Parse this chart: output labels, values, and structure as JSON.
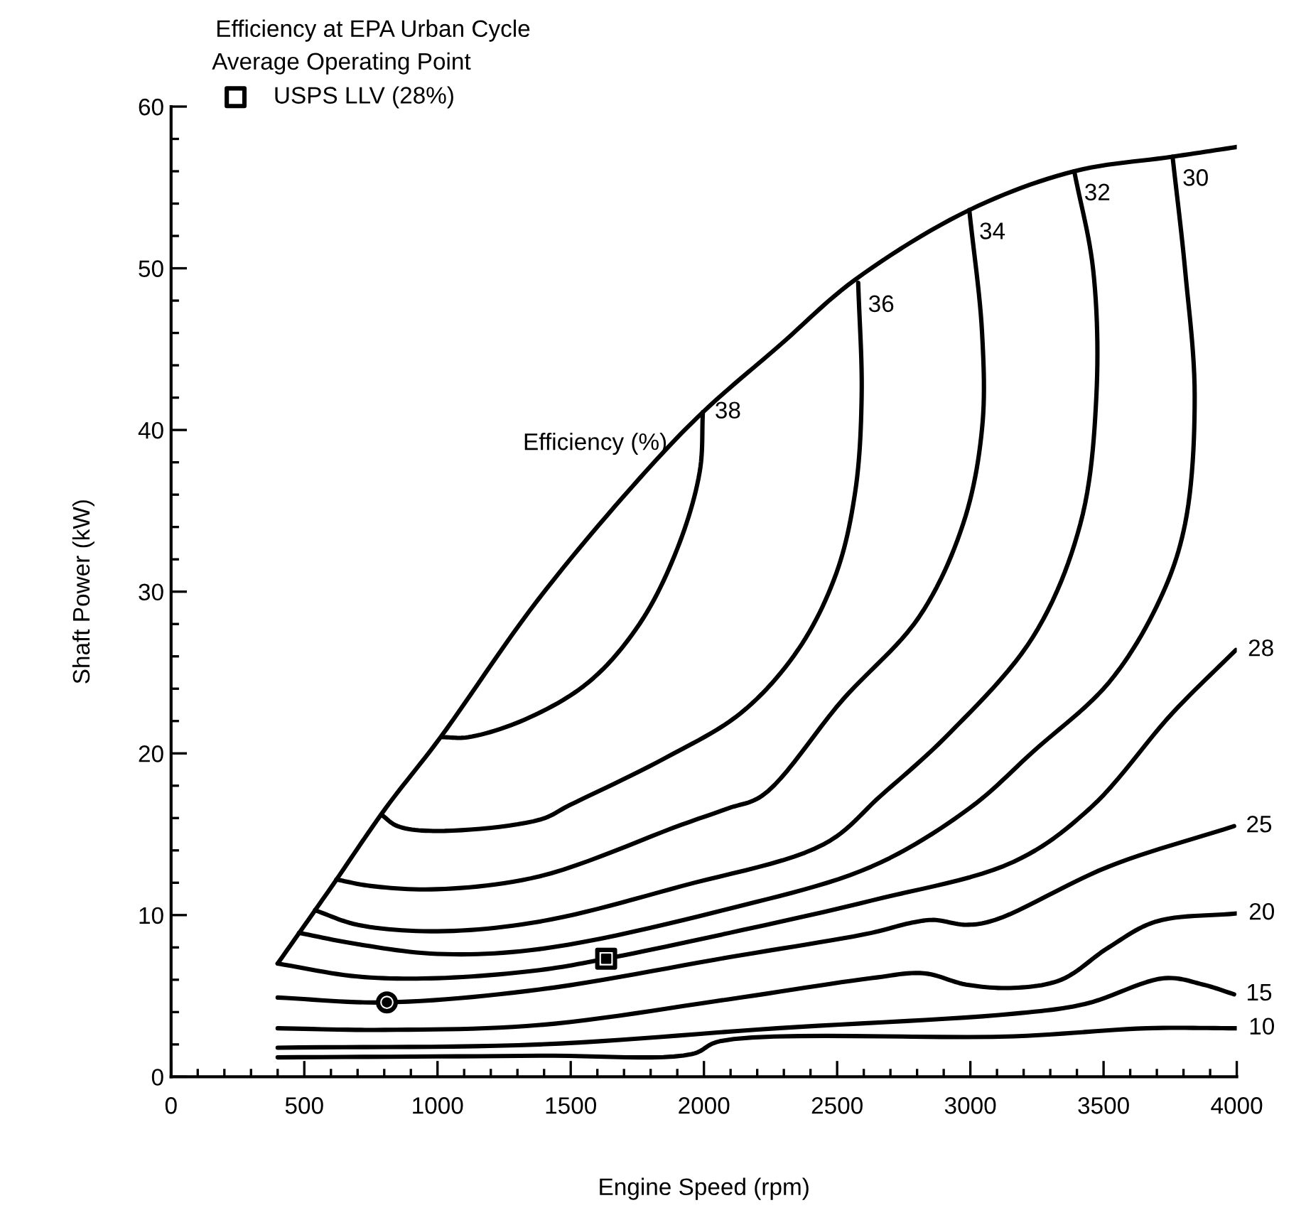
{
  "chart_data": {
    "type": "line",
    "title": "Efficiency at EPA Urban Cycle",
    "legend_title": "Average Operating Point",
    "xlabel": "Engine Speed (rpm)",
    "ylabel": "Shaft Power (kW)",
    "xlim": [
      0,
      4000
    ],
    "xticks": [
      0,
      500,
      1000,
      1500,
      2000,
      2500,
      3000,
      3500,
      4000
    ],
    "ylim": [
      0,
      60
    ],
    "yticks": [
      0,
      10,
      20,
      30,
      40,
      50,
      60
    ],
    "grid": false,
    "legend": "top left",
    "annotations": [
      {
        "text": "Efficiency (%)",
        "x": 1996,
        "y": 41.1
      }
    ],
    "series": [
      {
        "color": "#000000",
        "x": [
          400,
          600,
          805,
          1007,
          1377,
          1758,
          1996,
          2282,
          2568,
          2996,
          3390,
          3759,
          4000
        ],
        "values": [
          7.0,
          11.7,
          16.6,
          20.9,
          29.5,
          37.0,
          41.1,
          45.2,
          49.3,
          53.6,
          56.0,
          56.9,
          57.5
        ]
      },
      {
        "name": "38",
        "color": "#000000",
        "x": [
          1996,
          1984,
          1901,
          1758,
          1567,
          1329,
          1115,
          1019
        ],
        "values": [
          41.1,
          37.4,
          32.7,
          28.0,
          24.4,
          22.1,
          21.0,
          21.0
        ]
      },
      {
        "name": "36",
        "color": "#000000",
        "x": [
          2579,
          2592,
          2568,
          2496,
          2353,
          2139,
          1853,
          1496,
          1384,
          1000,
          850,
          790
        ],
        "values": [
          49.1,
          42.1,
          36.2,
          31.1,
          26.4,
          22.5,
          19.7,
          16.8,
          15.9,
          15.2,
          15.5,
          16.2
        ]
      },
      {
        "name": "34",
        "color": "#000000",
        "x": [
          2996,
          3044,
          3044,
          2973,
          2806,
          2520,
          2220,
          2091,
          1918,
          1384,
          1000,
          750,
          620
        ],
        "values": [
          53.6,
          46.0,
          40.1,
          34.2,
          28.4,
          23.3,
          17.4,
          16.6,
          15.6,
          12.4,
          11.6,
          11.8,
          12.2
        ]
      },
      {
        "name": "32",
        "color": "#000000",
        "x": [
          3390,
          3461,
          3473,
          3413,
          3235,
          2925,
          2665,
          2452,
          1918,
          1384,
          1000,
          700,
          540
        ],
        "values": [
          56.0,
          49.9,
          42.1,
          34.2,
          27.2,
          21.3,
          17.4,
          14.4,
          11.8,
          9.6,
          9.0,
          9.4,
          10.3
        ]
      },
      {
        "name": "30",
        "color": "#000000",
        "x": [
          3759,
          3806,
          3842,
          3806,
          3711,
          3521,
          3235,
          2996,
          2629,
          2096,
          1384,
          1000,
          700,
          480
        ],
        "values": [
          56.9,
          49.9,
          42.1,
          34.2,
          29.5,
          24.4,
          20.1,
          16.6,
          13.0,
          10.4,
          7.9,
          7.6,
          8.2,
          8.9
        ]
      },
      {
        "name": "28",
        "color": "#000000",
        "x": [
          3997,
          3759,
          3449,
          3163,
          2629,
          2096,
          1633,
          1384,
          1000,
          700,
          400
        ],
        "values": [
          26.4,
          22.5,
          16.6,
          13.3,
          10.9,
          8.9,
          7.3,
          6.6,
          6.1,
          6.2,
          7.0
        ]
      },
      {
        "name": "25",
        "color": "#000000",
        "x": [
          3990,
          3519,
          3093,
          2985,
          2861,
          2772,
          2629,
          2096,
          1384,
          800,
          400
        ],
        "values": [
          15.5,
          13.0,
          9.7,
          9.4,
          9.7,
          9.5,
          8.9,
          7.4,
          5.4,
          4.6,
          4.9
        ]
      },
      {
        "name": "20",
        "color": "#000000",
        "x": [
          4000,
          3697,
          3519,
          3341,
          3163,
          2985,
          2825,
          2629,
          2096,
          1384,
          800,
          400
        ],
        "values": [
          10.1,
          9.6,
          8.0,
          6.0,
          5.5,
          5.7,
          6.4,
          6.1,
          4.8,
          3.2,
          2.9,
          3.0
        ]
      },
      {
        "name": "15",
        "color": "#000000",
        "x": [
          3990,
          3874,
          3730,
          3430,
          3163,
          2274,
          1384,
          400
        ],
        "values": [
          5.1,
          5.7,
          6.1,
          4.5,
          3.9,
          3.0,
          2.0,
          1.8
        ]
      },
      {
        "name": "10",
        "color": "#000000",
        "x": [
          4000,
          3661,
          3163,
          2060,
          1954,
          1384,
          400
        ],
        "values": [
          3.0,
          3.0,
          2.5,
          2.2,
          1.4,
          1.3,
          1.2
        ]
      },
      {
        "type": "scatter",
        "name": "USPS LLV (28%)",
        "marker": "square",
        "color": "#000000",
        "x": [
          1633
        ],
        "values": [
          7.3
        ]
      },
      {
        "type": "scatter",
        "marker": "circle",
        "color": "#000000",
        "x": [
          810
        ],
        "values": [
          4.6
        ]
      }
    ]
  }
}
